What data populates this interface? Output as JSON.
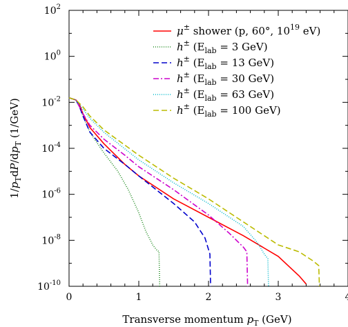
{
  "chart_data": {
    "type": "line",
    "xlabel": "Transverse momentum p_T (GeV)",
    "ylabel": "1/p_T dP/dp_T (1/GeV)",
    "xlim": [
      0,
      4
    ],
    "ylim_log10": [
      -10,
      2
    ],
    "y_scale": "log",
    "x_ticks": [
      "0",
      "1",
      "2",
      "3",
      "4"
    ],
    "y_ticks": [
      {
        "base": "10",
        "exp": "2",
        "log": 2
      },
      {
        "base": "10",
        "exp": "0",
        "log": 0
      },
      {
        "base": "10",
        "exp": "-2",
        "log": -2
      },
      {
        "base": "10",
        "exp": "-4",
        "log": -4
      },
      {
        "base": "10",
        "exp": "-6",
        "log": -6
      },
      {
        "base": "10",
        "exp": "-8",
        "log": -8
      },
      {
        "base": "10",
        "exp": "-10",
        "log": -10
      }
    ],
    "legend_position": "top-right",
    "grid": false,
    "series": [
      {
        "name": "μ± shower (p, 60°, 10¹⁹ eV)",
        "color": "#ff0000",
        "dash": "solid",
        "x": [
          0,
          0.1,
          0.15,
          0.2,
          0.3,
          0.5,
          0.8,
          1.0,
          1.5,
          2.0,
          2.5,
          3.0,
          3.3,
          3.4
        ],
        "log10_y": [
          -1.8,
          -1.9,
          -2.1,
          -2.5,
          -3.1,
          -3.8,
          -4.7,
          -5.2,
          -6.2,
          -7.0,
          -7.8,
          -8.7,
          -9.55,
          -9.9
        ]
      },
      {
        "name": "h± (E_lab = 3 GeV)",
        "color": "#228b22",
        "dash": "1,2",
        "x": [
          0,
          0.1,
          0.15,
          0.2,
          0.3,
          0.5,
          0.7,
          0.85,
          1.0,
          1.1,
          1.2,
          1.25,
          1.29,
          1.3
        ],
        "log10_y": [
          -1.8,
          -1.9,
          -2.2,
          -2.6,
          -3.3,
          -4.2,
          -5.0,
          -5.8,
          -6.8,
          -7.6,
          -8.2,
          -8.4,
          -8.5,
          -10
        ]
      },
      {
        "name": "h± (E_lab = 13 GeV)",
        "color": "#0000cc",
        "dash": "8,4",
        "x": [
          0,
          0.1,
          0.15,
          0.2,
          0.3,
          0.5,
          0.8,
          1.0,
          1.5,
          1.8,
          1.95,
          2.02,
          2.03
        ],
        "log10_y": [
          -1.8,
          -1.9,
          -2.2,
          -2.6,
          -3.3,
          -4.0,
          -4.7,
          -5.2,
          -6.4,
          -7.2,
          -7.9,
          -8.6,
          -10
        ]
      },
      {
        "name": "h± (E_lab = 30 GeV)",
        "color": "#cc00cc",
        "dash": "8,3,2,3",
        "x": [
          0,
          0.1,
          0.15,
          0.2,
          0.3,
          0.5,
          0.8,
          1.0,
          1.5,
          2.0,
          2.3,
          2.5,
          2.55,
          2.56
        ],
        "log10_y": [
          -1.8,
          -1.9,
          -2.2,
          -2.5,
          -3.0,
          -3.6,
          -4.3,
          -4.8,
          -5.8,
          -6.9,
          -7.7,
          -8.3,
          -8.5,
          -10
        ]
      },
      {
        "name": "h± (E_lab = 63 GeV)",
        "color": "#00b8cc",
        "dash": "1,2",
        "x": [
          0,
          0.1,
          0.2,
          0.3,
          0.5,
          1.0,
          1.5,
          2.0,
          2.5,
          2.7,
          2.8,
          2.85,
          2.86
        ],
        "log10_y": [
          -1.8,
          -1.9,
          -2.3,
          -2.7,
          -3.3,
          -4.5,
          -5.5,
          -6.4,
          -7.4,
          -8.1,
          -8.6,
          -8.8,
          -10
        ]
      },
      {
        "name": "h± (E_lab = 100 GeV)",
        "color": "#bbbb00",
        "dash": "8,4",
        "x": [
          0,
          0.1,
          0.2,
          0.3,
          0.5,
          1.0,
          1.5,
          2.0,
          2.5,
          2.8,
          3.0,
          3.3,
          3.5,
          3.58,
          3.59
        ],
        "log10_y": [
          -1.8,
          -1.9,
          -2.2,
          -2.6,
          -3.2,
          -4.3,
          -5.3,
          -6.2,
          -7.2,
          -7.8,
          -8.2,
          -8.5,
          -8.9,
          -9.1,
          -10
        ]
      }
    ],
    "legend": [
      {
        "prefix": "μ",
        "sup": "±",
        "text": " shower (p, 60°, 10",
        "sup2": "19",
        "tail": " eV)"
      },
      {
        "prefix": "h",
        "sup": "±",
        "text": " (E",
        "sub": "lab",
        "tail": " = 3 GeV)"
      },
      {
        "prefix": "h",
        "sup": "±",
        "text": " (E",
        "sub": "lab",
        "tail": " = 13 GeV)"
      },
      {
        "prefix": "h",
        "sup": "±",
        "text": " (E",
        "sub": "lab",
        "tail": " = 30 GeV)"
      },
      {
        "prefix": "h",
        "sup": "±",
        "text": " (E",
        "sub": "lab",
        "tail": " = 63 GeV)"
      },
      {
        "prefix": "h",
        "sup": "±",
        "text": " (E",
        "sub": "lab",
        "tail": " = 100 GeV)"
      }
    ],
    "xlabel_parts": {
      "main": "Transverse momentum ",
      "var": "p",
      "sub": "T",
      "unit": " (GeV)"
    },
    "ylabel_parts": {
      "a": "1/",
      "var": "p",
      "sub": "T",
      "b": "d",
      "P": "P",
      "c": "/d",
      "var2": "p",
      "sub2": "T",
      "unit": " (1/GeV)"
    }
  }
}
